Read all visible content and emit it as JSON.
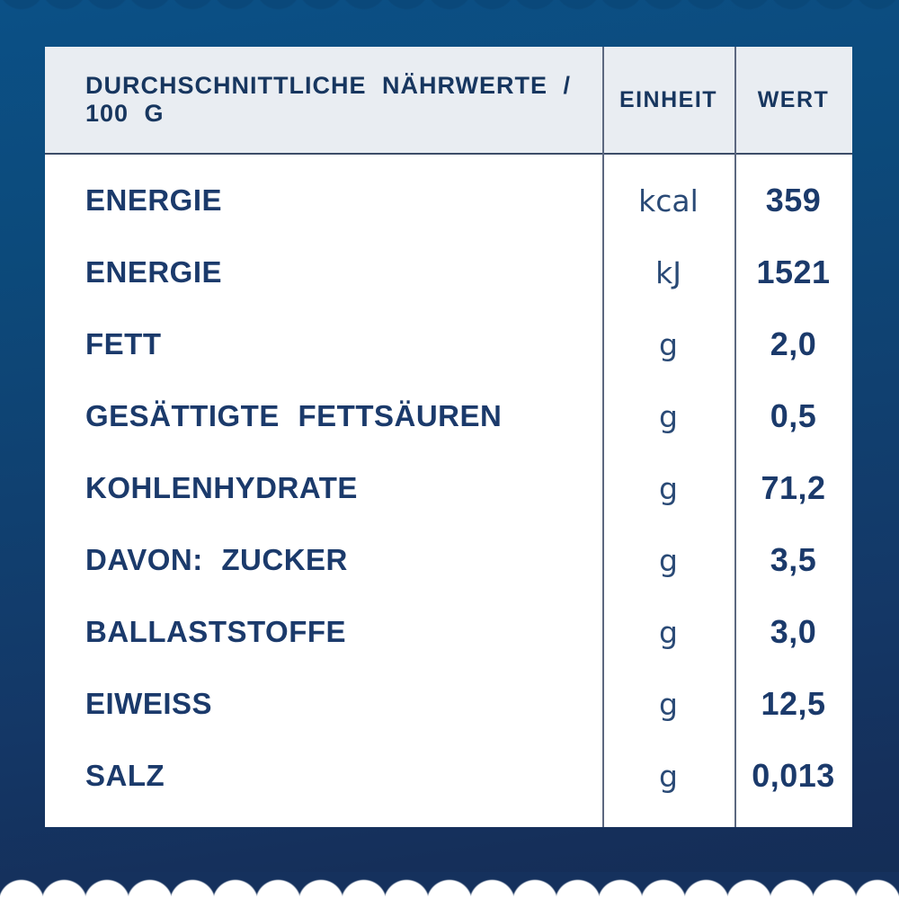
{
  "table": {
    "headers": {
      "nutrient": "DURCHSCHNITTLICHE NÄHRWERTE / 100 G",
      "unit": "EINHEIT",
      "value": "WERT"
    },
    "rows": [
      {
        "label": "ENERGIE",
        "unit": "kcal",
        "value": "359"
      },
      {
        "label": "ENERGIE",
        "unit": "kJ",
        "value": "1521"
      },
      {
        "label": "FETT",
        "unit": "g",
        "value": "2,0"
      },
      {
        "label": "GESÄTTIGTE FETTSÄUREN",
        "unit": "g",
        "value": "0,5"
      },
      {
        "label": "KOHLENHYDRATE",
        "unit": "g",
        "value": "71,2"
      },
      {
        "label": "DAVON: ZUCKER",
        "unit": "g",
        "value": "3,5"
      },
      {
        "label": "BALLASTSTOFFE",
        "unit": "g",
        "value": "3,0"
      },
      {
        "label": "EIWEISS",
        "unit": "g",
        "value": "12,5"
      },
      {
        "label": "SALZ",
        "unit": "g",
        "value": "0,013"
      }
    ],
    "colors": {
      "background_top": "#0b5086",
      "background_bottom": "#142d55",
      "header_bg": "#e9edf2",
      "text_navy": "#1b3a6b",
      "divider": "#5c6880",
      "table_bg": "#ffffff"
    }
  }
}
